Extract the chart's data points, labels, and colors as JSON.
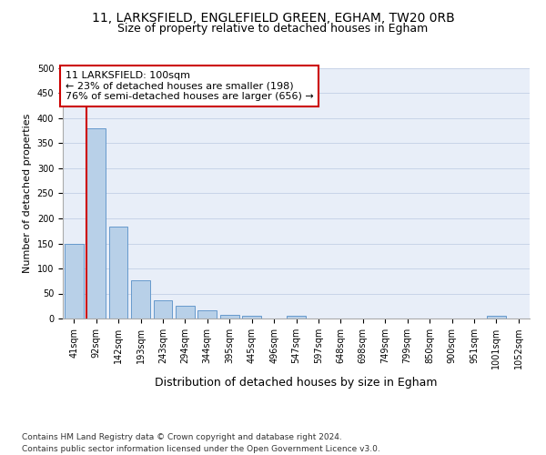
{
  "title1": "11, LARKSFIELD, ENGLEFIELD GREEN, EGHAM, TW20 0RB",
  "title2": "Size of property relative to detached houses in Egham",
  "xlabel": "Distribution of detached houses by size in Egham",
  "ylabel": "Number of detached properties",
  "bar_labels": [
    "41sqm",
    "92sqm",
    "142sqm",
    "193sqm",
    "243sqm",
    "294sqm",
    "344sqm",
    "395sqm",
    "445sqm",
    "496sqm",
    "547sqm",
    "597sqm",
    "648sqm",
    "698sqm",
    "749sqm",
    "799sqm",
    "850sqm",
    "900sqm",
    "951sqm",
    "1001sqm",
    "1052sqm"
  ],
  "bar_values": [
    150,
    380,
    183,
    77,
    37,
    25,
    17,
    8,
    5,
    0,
    5,
    0,
    0,
    0,
    0,
    0,
    0,
    0,
    0,
    5,
    0
  ],
  "bar_color": "#b8d0e8",
  "bar_edgecolor": "#6699cc",
  "vline_x_index": 1,
  "vline_color": "#cc0000",
  "annotation_text": "11 LARKSFIELD: 100sqm\n← 23% of detached houses are smaller (198)\n76% of semi-detached houses are larger (656) →",
  "annotation_box_color": "#cc0000",
  "ylim": [
    0,
    500
  ],
  "yticks": [
    0,
    50,
    100,
    150,
    200,
    250,
    300,
    350,
    400,
    450,
    500
  ],
  "grid_color": "#c8d4e8",
  "bg_color": "#e8eef8",
  "footer1": "Contains HM Land Registry data © Crown copyright and database right 2024.",
  "footer2": "Contains public sector information licensed under the Open Government Licence v3.0.",
  "title1_fontsize": 10,
  "title2_fontsize": 9,
  "xlabel_fontsize": 9,
  "ylabel_fontsize": 8,
  "tick_fontsize": 7,
  "annot_fontsize": 8,
  "footer_fontsize": 6.5
}
